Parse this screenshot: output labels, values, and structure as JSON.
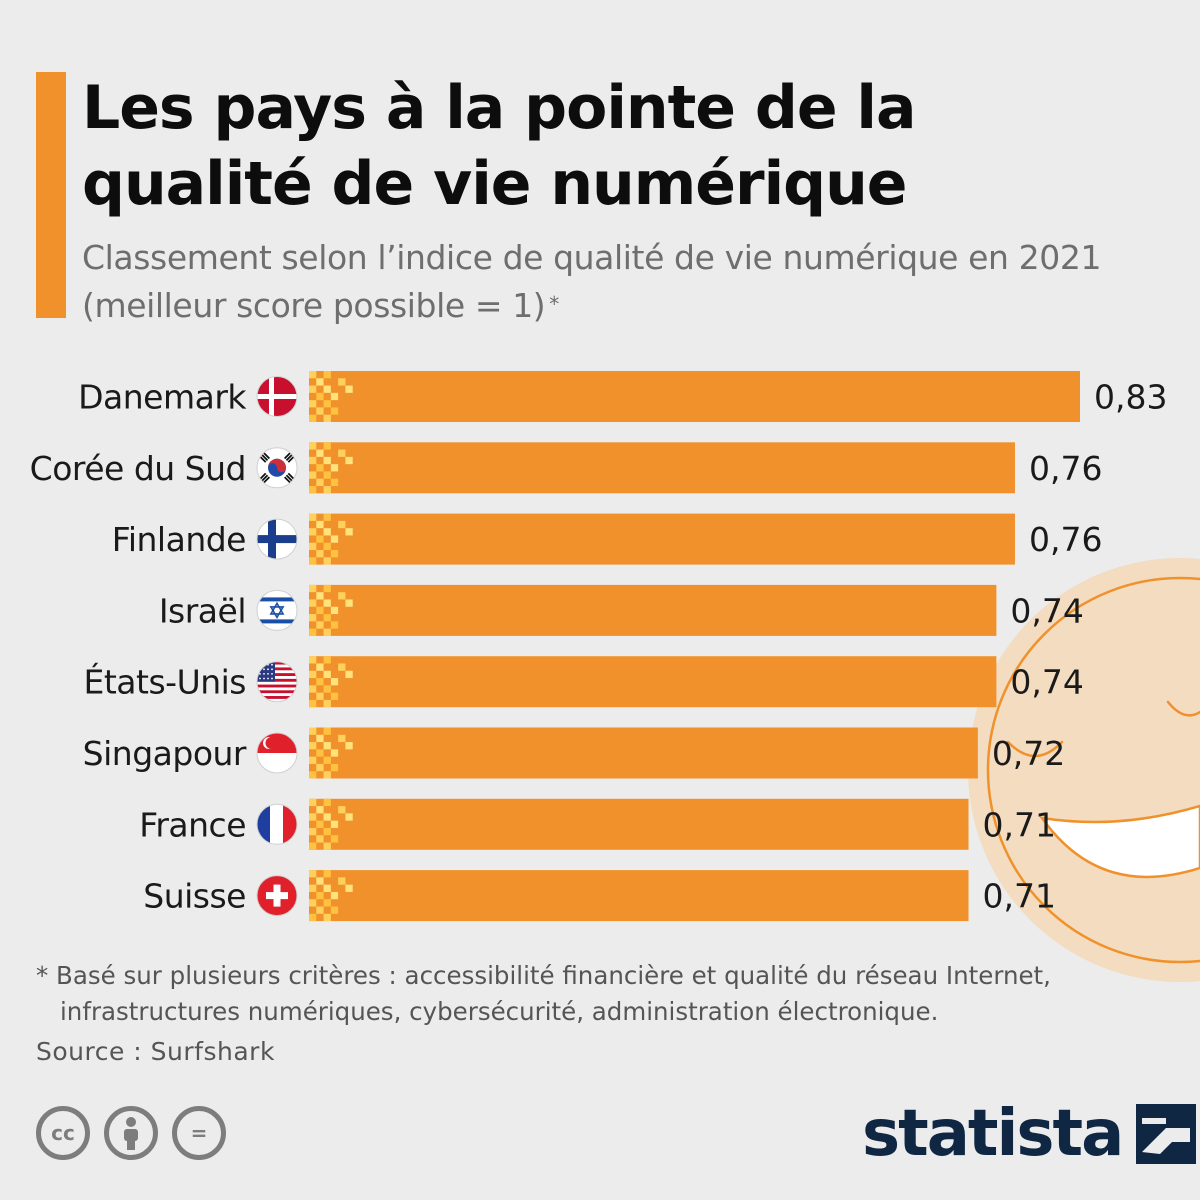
{
  "header": {
    "title_line1": "Les pays à la pointe de la",
    "title_line2": "qualité de vie numérique",
    "subtitle": "Classement selon l’indice de qualité de vie numérique en 2021 (meilleur score possible = 1)",
    "subtitle_mark": "*"
  },
  "chart_data": {
    "type": "bar",
    "orientation": "horizontal",
    "categories": [
      "Danemark",
      "Corée du Sud",
      "Finlande",
      "Israël",
      "États-Unis",
      "Singapour",
      "France",
      "Suisse"
    ],
    "values": [
      0.83,
      0.76,
      0.76,
      0.74,
      0.74,
      0.72,
      0.71,
      0.71
    ],
    "value_labels": [
      "0,83",
      "0,76",
      "0,76",
      "0,74",
      "0,74",
      "0,72",
      "0,71",
      "0,71"
    ],
    "flags": [
      "denmark-flag-icon",
      "south-korea-flag-icon",
      "finland-flag-icon",
      "israel-flag-icon",
      "usa-flag-icon",
      "singapore-flag-icon",
      "france-flag-icon",
      "switzerland-flag-icon"
    ],
    "xlim": [
      0,
      0.83
    ],
    "bar_color": "#f0912c",
    "grid": false,
    "legend": "none"
  },
  "footer": {
    "footnote_line1": "* Basé sur plusieurs critères : accessibilité financière et qualité du réseau Internet,",
    "footnote_line2": "infrastructures numériques, cybersécurité, administration électronique.",
    "source": "Source : Surfshark",
    "license_icons": [
      "creative-commons-icon",
      "attribution-icon",
      "no-derivatives-icon"
    ],
    "license_glyphs": [
      "cc",
      "=",
      ""
    ],
    "logo_text": "statista"
  },
  "colors": {
    "background": "#ececec",
    "accent": "#f0912c",
    "pixel_light": "#ffd15c",
    "pixel_mid": "#ffc140",
    "smiley_fill": "#f3dcc0",
    "smiley_stroke": "#f0912c",
    "logo": "#0f2743"
  }
}
